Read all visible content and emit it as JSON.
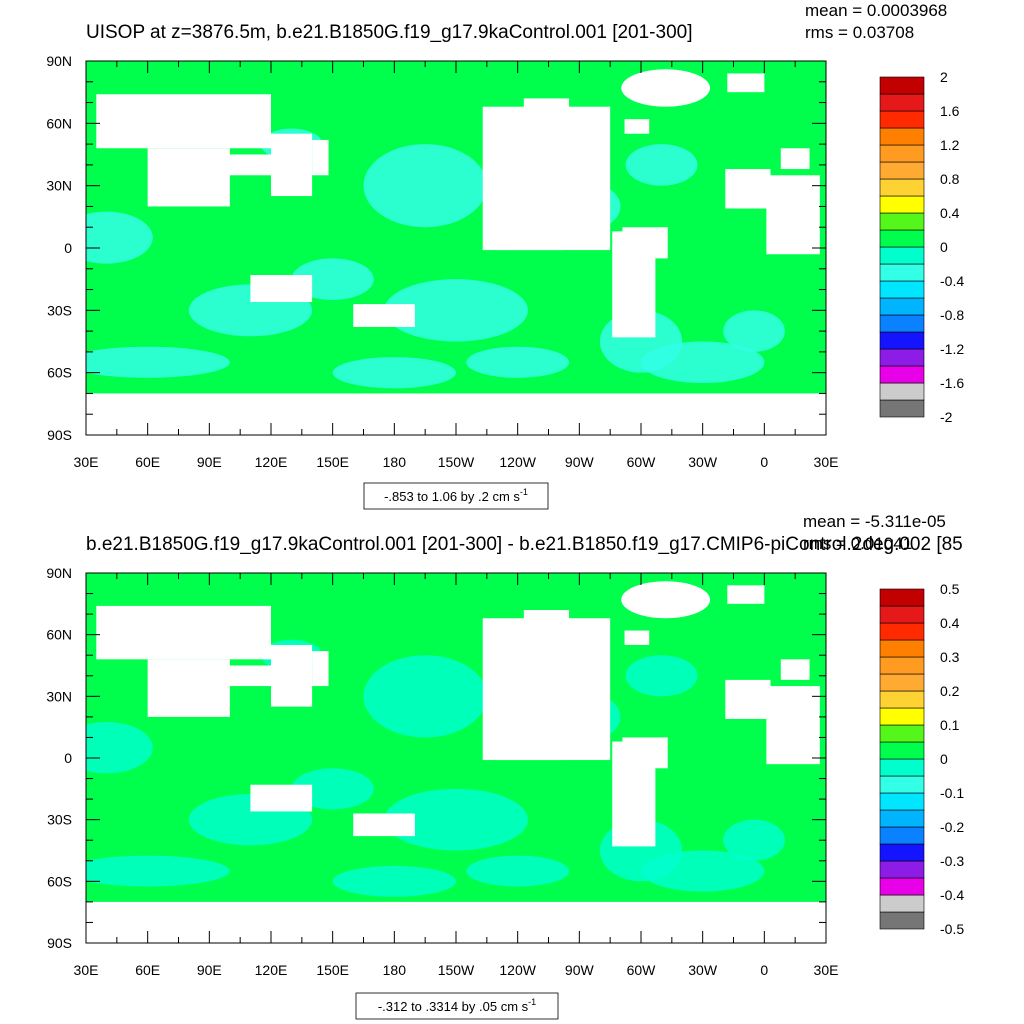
{
  "colors": {
    "land": "#ffffff",
    "ocean_zero": "#00ff4c",
    "ocean_neg_light": "#00ffcc",
    "ocean_neg": "#33ffe6",
    "frame": "#000000"
  },
  "color_scale": [
    "#767676",
    "#cccccc",
    "#e800e8",
    "#8c1ce6",
    "#1414ff",
    "#0a82ff",
    "#00b4ff",
    "#00e6ff",
    "#33ffe6",
    "#00ffcc",
    "#00ff4c",
    "#55f71a",
    "#ffff00",
    "#ffd233",
    "#ffaa33",
    "#ff9b21",
    "#ff7f00",
    "#ff2a00",
    "#e51919",
    "#c20000"
  ],
  "chart_data": [
    {
      "type": "heatmap",
      "title": "UISOP at z=3876.5m, b.e21.B1850G.f19_g17.9kaControl.001 [201-300]",
      "stats": {
        "mean": "mean = 0.0003968",
        "rms": "rms = 0.03708"
      },
      "x_ticks": [
        "30E",
        "60E",
        "90E",
        "120E",
        "150E",
        "180",
        "150W",
        "120W",
        "90W",
        "60W",
        "30W",
        "0",
        "30E"
      ],
      "y_ticks": [
        "90N",
        "60N",
        "30N",
        "0",
        "30S",
        "60S",
        "90S"
      ],
      "xlim": [
        30,
        390
      ],
      "ylim": [
        -90,
        90
      ],
      "colorbar_labels": [
        "2",
        "1.6",
        "1.2",
        "0.8",
        "0.4",
        "0",
        "-0.4",
        "-0.8",
        "-1.2",
        "-1.6",
        "-2"
      ],
      "colorbar_range": [
        -2,
        2
      ],
      "info_label": {
        "main": "-.853 to 1.06 by .2 cm s",
        "sup": "-1"
      }
    },
    {
      "type": "heatmap",
      "title": "b.e21.B1850G.f19_g17.9kaControl.001 [201-300] - b.e21.B1850.f19_g17.CMIP6-piControl.2deg.002 [85",
      "stats": {
        "mean": "mean = -5.311e-05",
        "rms": "rms = 0.01041"
      },
      "x_ticks": [
        "30E",
        "60E",
        "90E",
        "120E",
        "150E",
        "180",
        "150W",
        "120W",
        "90W",
        "60W",
        "30W",
        "0",
        "30E"
      ],
      "y_ticks": [
        "90N",
        "60N",
        "30N",
        "0",
        "30S",
        "60S",
        "90S"
      ],
      "xlim": [
        30,
        390
      ],
      "ylim": [
        -90,
        90
      ],
      "colorbar_labels": [
        "0.5",
        "0.4",
        "0.3",
        "0.2",
        "0.1",
        "0",
        "-0.1",
        "-0.2",
        "-0.3",
        "-0.4",
        "-0.5"
      ],
      "colorbar_range": [
        -0.5,
        0.5
      ],
      "info_label": {
        "main": "-.312 to .3314 by .05 cm s",
        "sup": "-1"
      }
    }
  ]
}
